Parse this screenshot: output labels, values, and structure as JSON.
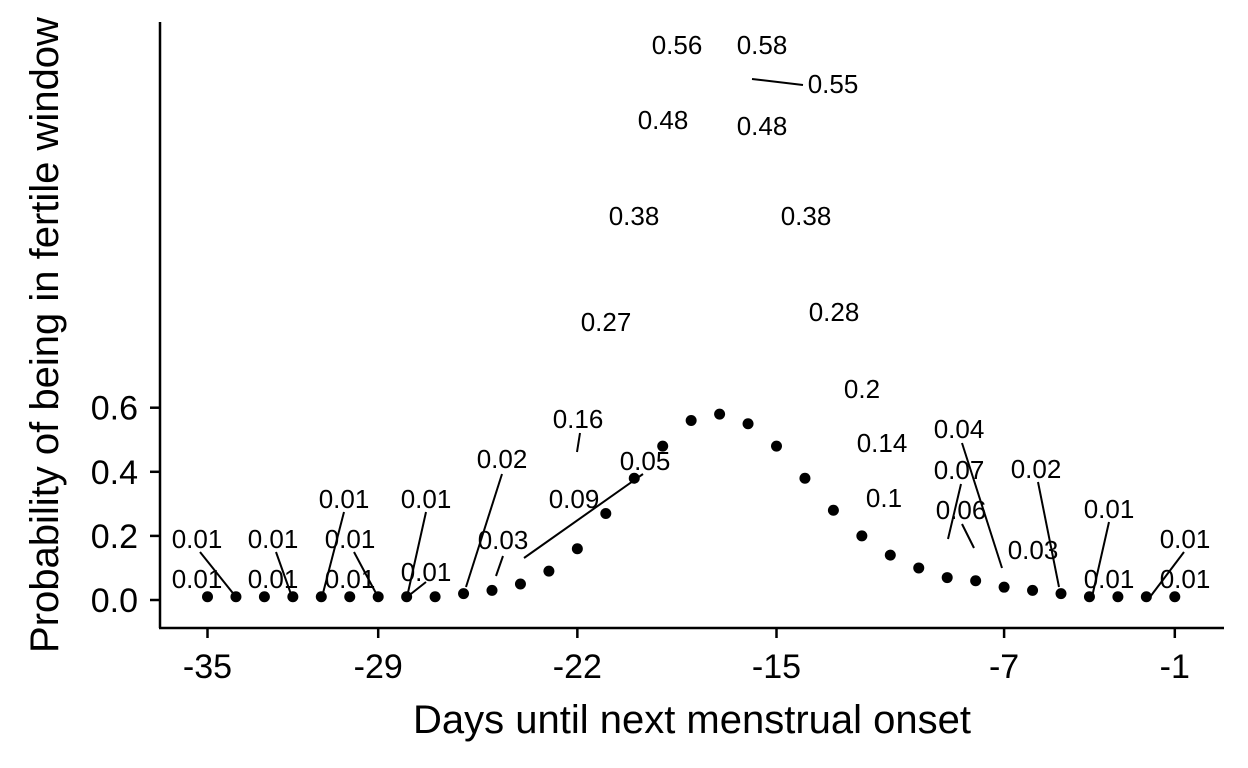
{
  "chart_data": {
    "type": "scatter",
    "title": "",
    "xlabel": "Days until next menstrual onset",
    "ylabel": "Probability of being in fertile window",
    "xlim": [
      -36.6,
      -0.2
    ],
    "ylim": [
      -0.02,
      0.61
    ],
    "x_ticks": [
      -35,
      -29,
      -22,
      -15,
      -7,
      -1
    ],
    "x_tick_labels": [
      "-35",
      "-29",
      "-22",
      "-15",
      "-7",
      "-1"
    ],
    "y_ticks": [
      0.0,
      0.2,
      0.4,
      0.6
    ],
    "y_tick_labels": [
      "0.0",
      "0.2",
      "0.4",
      "0.6"
    ],
    "grid": false,
    "legend": "none",
    "point_color": "#000000",
    "points": [
      {
        "x": -35,
        "y": 0.01,
        "label": "0.01"
      },
      {
        "x": -34,
        "y": 0.01,
        "label": "0.01"
      },
      {
        "x": -33,
        "y": 0.01,
        "label": "0.01"
      },
      {
        "x": -32,
        "y": 0.01,
        "label": "0.01"
      },
      {
        "x": -31,
        "y": 0.01,
        "label": "0.01"
      },
      {
        "x": -30,
        "y": 0.01,
        "label": "0.01"
      },
      {
        "x": -29,
        "y": 0.01,
        "label": "0.01"
      },
      {
        "x": -28,
        "y": 0.01,
        "label": "0.01"
      },
      {
        "x": -27,
        "y": 0.01,
        "label": "0.01"
      },
      {
        "x": -26,
        "y": 0.02,
        "label": "0.02"
      },
      {
        "x": -25,
        "y": 0.03,
        "label": "0.03"
      },
      {
        "x": -24,
        "y": 0.05,
        "label": "0.05"
      },
      {
        "x": -23,
        "y": 0.09,
        "label": "0.09"
      },
      {
        "x": -22,
        "y": 0.16,
        "label": "0.16"
      },
      {
        "x": -21,
        "y": 0.27,
        "label": "0.27"
      },
      {
        "x": -20,
        "y": 0.38,
        "label": "0.38"
      },
      {
        "x": -19,
        "y": 0.48,
        "label": "0.48"
      },
      {
        "x": -18,
        "y": 0.56,
        "label": "0.56"
      },
      {
        "x": -17,
        "y": 0.58,
        "label": "0.58"
      },
      {
        "x": -16,
        "y": 0.55,
        "label": "0.55"
      },
      {
        "x": -15,
        "y": 0.48,
        "label": "0.48"
      },
      {
        "x": -14,
        "y": 0.38,
        "label": "0.38"
      },
      {
        "x": -13,
        "y": 0.28,
        "label": "0.28"
      },
      {
        "x": -12,
        "y": 0.2,
        "label": "0.2"
      },
      {
        "x": -11,
        "y": 0.14,
        "label": "0.14"
      },
      {
        "x": -10,
        "y": 0.1,
        "label": "0.1"
      },
      {
        "x": -9,
        "y": 0.07,
        "label": "0.07"
      },
      {
        "x": -8,
        "y": 0.06,
        "label": "0.06"
      },
      {
        "x": -7,
        "y": 0.04,
        "label": "0.04"
      },
      {
        "x": -6,
        "y": 0.03,
        "label": "0.03"
      },
      {
        "x": -5,
        "y": 0.02,
        "label": "0.02"
      },
      {
        "x": -4,
        "y": 0.01,
        "label": "0.01"
      },
      {
        "x": -3,
        "y": 0.01,
        "label": "0.01"
      },
      {
        "x": -2,
        "y": 0.01,
        "label": "0.01"
      },
      {
        "x": -1,
        "y": 0.01,
        "label": "0.01"
      }
    ]
  }
}
